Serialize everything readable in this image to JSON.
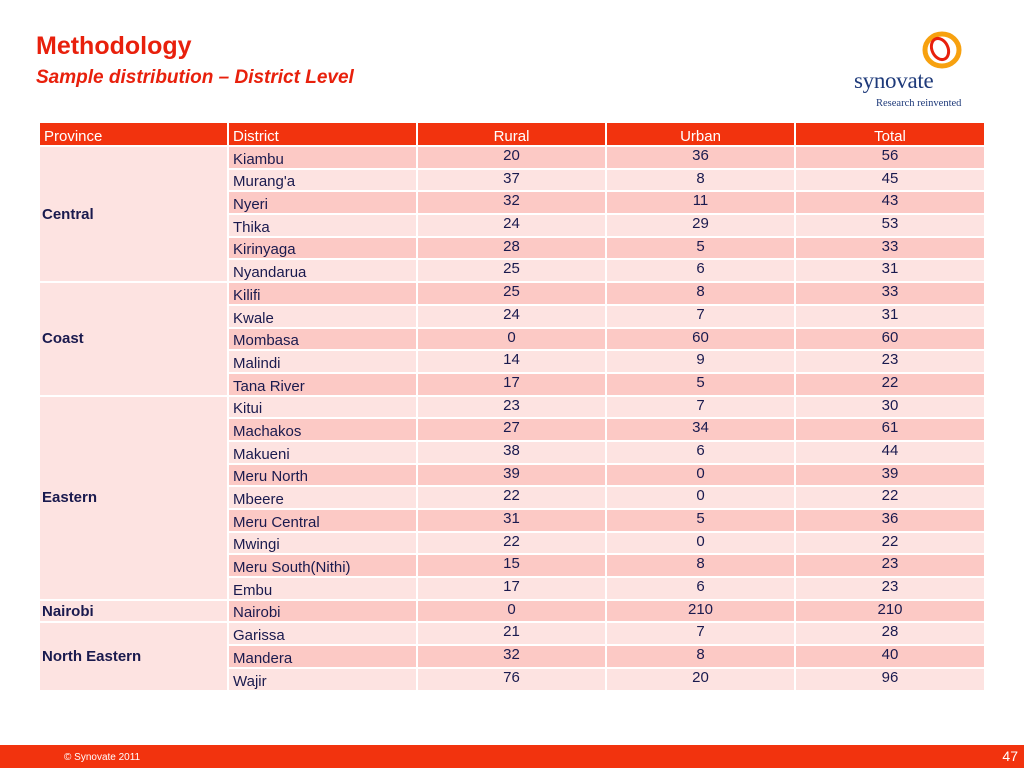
{
  "slide": {
    "title": "Methodology",
    "subtitle": "Sample distribution – District Level"
  },
  "logo": {
    "wordmark": "synovate",
    "tagline": "Research reinvented",
    "ring_outer_color": "#f7a10f",
    "ring_inner_color": "#e8200c"
  },
  "table": {
    "headers": {
      "province": "Province",
      "district": "District",
      "rural": "Rural",
      "urban": "Urban",
      "total": "Total"
    },
    "groups": [
      {
        "province": "Central",
        "rows": [
          {
            "district": "Kiambu",
            "rural": "20",
            "urban": "36",
            "total": "56"
          },
          {
            "district": "Murang'a",
            "rural": "37",
            "urban": "8",
            "total": "45"
          },
          {
            "district": "Nyeri",
            "rural": "32",
            "urban": "11",
            "total": "43"
          },
          {
            "district": "Thika",
            "rural": "24",
            "urban": "29",
            "total": "53"
          },
          {
            "district": "Kirinyaga",
            "rural": "28",
            "urban": "5",
            "total": "33"
          },
          {
            "district": "Nyandarua",
            "rural": "25",
            "urban": "6",
            "total": "31"
          }
        ]
      },
      {
        "province": "Coast",
        "rows": [
          {
            "district": "Kilifi",
            "rural": "25",
            "urban": "8",
            "total": "33"
          },
          {
            "district": "Kwale",
            "rural": "24",
            "urban": "7",
            "total": "31"
          },
          {
            "district": "Mombasa",
            "rural": "0",
            "urban": "60",
            "total": "60"
          },
          {
            "district": "Malindi",
            "rural": "14",
            "urban": "9",
            "total": "23"
          },
          {
            "district": "Tana River",
            "rural": "17",
            "urban": "5",
            "total": "22"
          }
        ]
      },
      {
        "province": "Eastern",
        "rows": [
          {
            "district": "Kitui",
            "rural": "23",
            "urban": "7",
            "total": "30"
          },
          {
            "district": "Machakos",
            "rural": "27",
            "urban": "34",
            "total": "61"
          },
          {
            "district": "Makueni",
            "rural": "38",
            "urban": "6",
            "total": "44"
          },
          {
            "district": "Meru North",
            "rural": "39",
            "urban": "0",
            "total": "39"
          },
          {
            "district": "Mbeere",
            "rural": "22",
            "urban": "0",
            "total": "22"
          },
          {
            "district": "Meru Central",
            "rural": "31",
            "urban": "5",
            "total": "36"
          },
          {
            "district": "Mwingi",
            "rural": "22",
            "urban": "0",
            "total": "22"
          },
          {
            "district": "Meru South(Nithi)",
            "rural": "15",
            "urban": "8",
            "total": "23"
          },
          {
            "district": "Embu",
            "rural": "17",
            "urban": "6",
            "total": "23"
          }
        ]
      },
      {
        "province": "Nairobi",
        "rows": [
          {
            "district": "Nairobi",
            "rural": "0",
            "urban": "210",
            "total": "210"
          }
        ]
      },
      {
        "province": "North Eastern",
        "rows": [
          {
            "district": "Garissa",
            "rural": "21",
            "urban": "7",
            "total": "28"
          },
          {
            "district": "Mandera",
            "rural": "32",
            "urban": "8",
            "total": "40"
          },
          {
            "district": "Wajir",
            "rural": "76",
            "urban": "20",
            "total": "96"
          }
        ]
      }
    ]
  },
  "footer": {
    "copyright": "© Synovate 2011",
    "page_number": "47"
  },
  "colors": {
    "accent": "#f2330e",
    "title": "#e8200c",
    "row_dark": "#fcc9c5",
    "row_light": "#fde3e1",
    "text": "#1a1a4e"
  }
}
